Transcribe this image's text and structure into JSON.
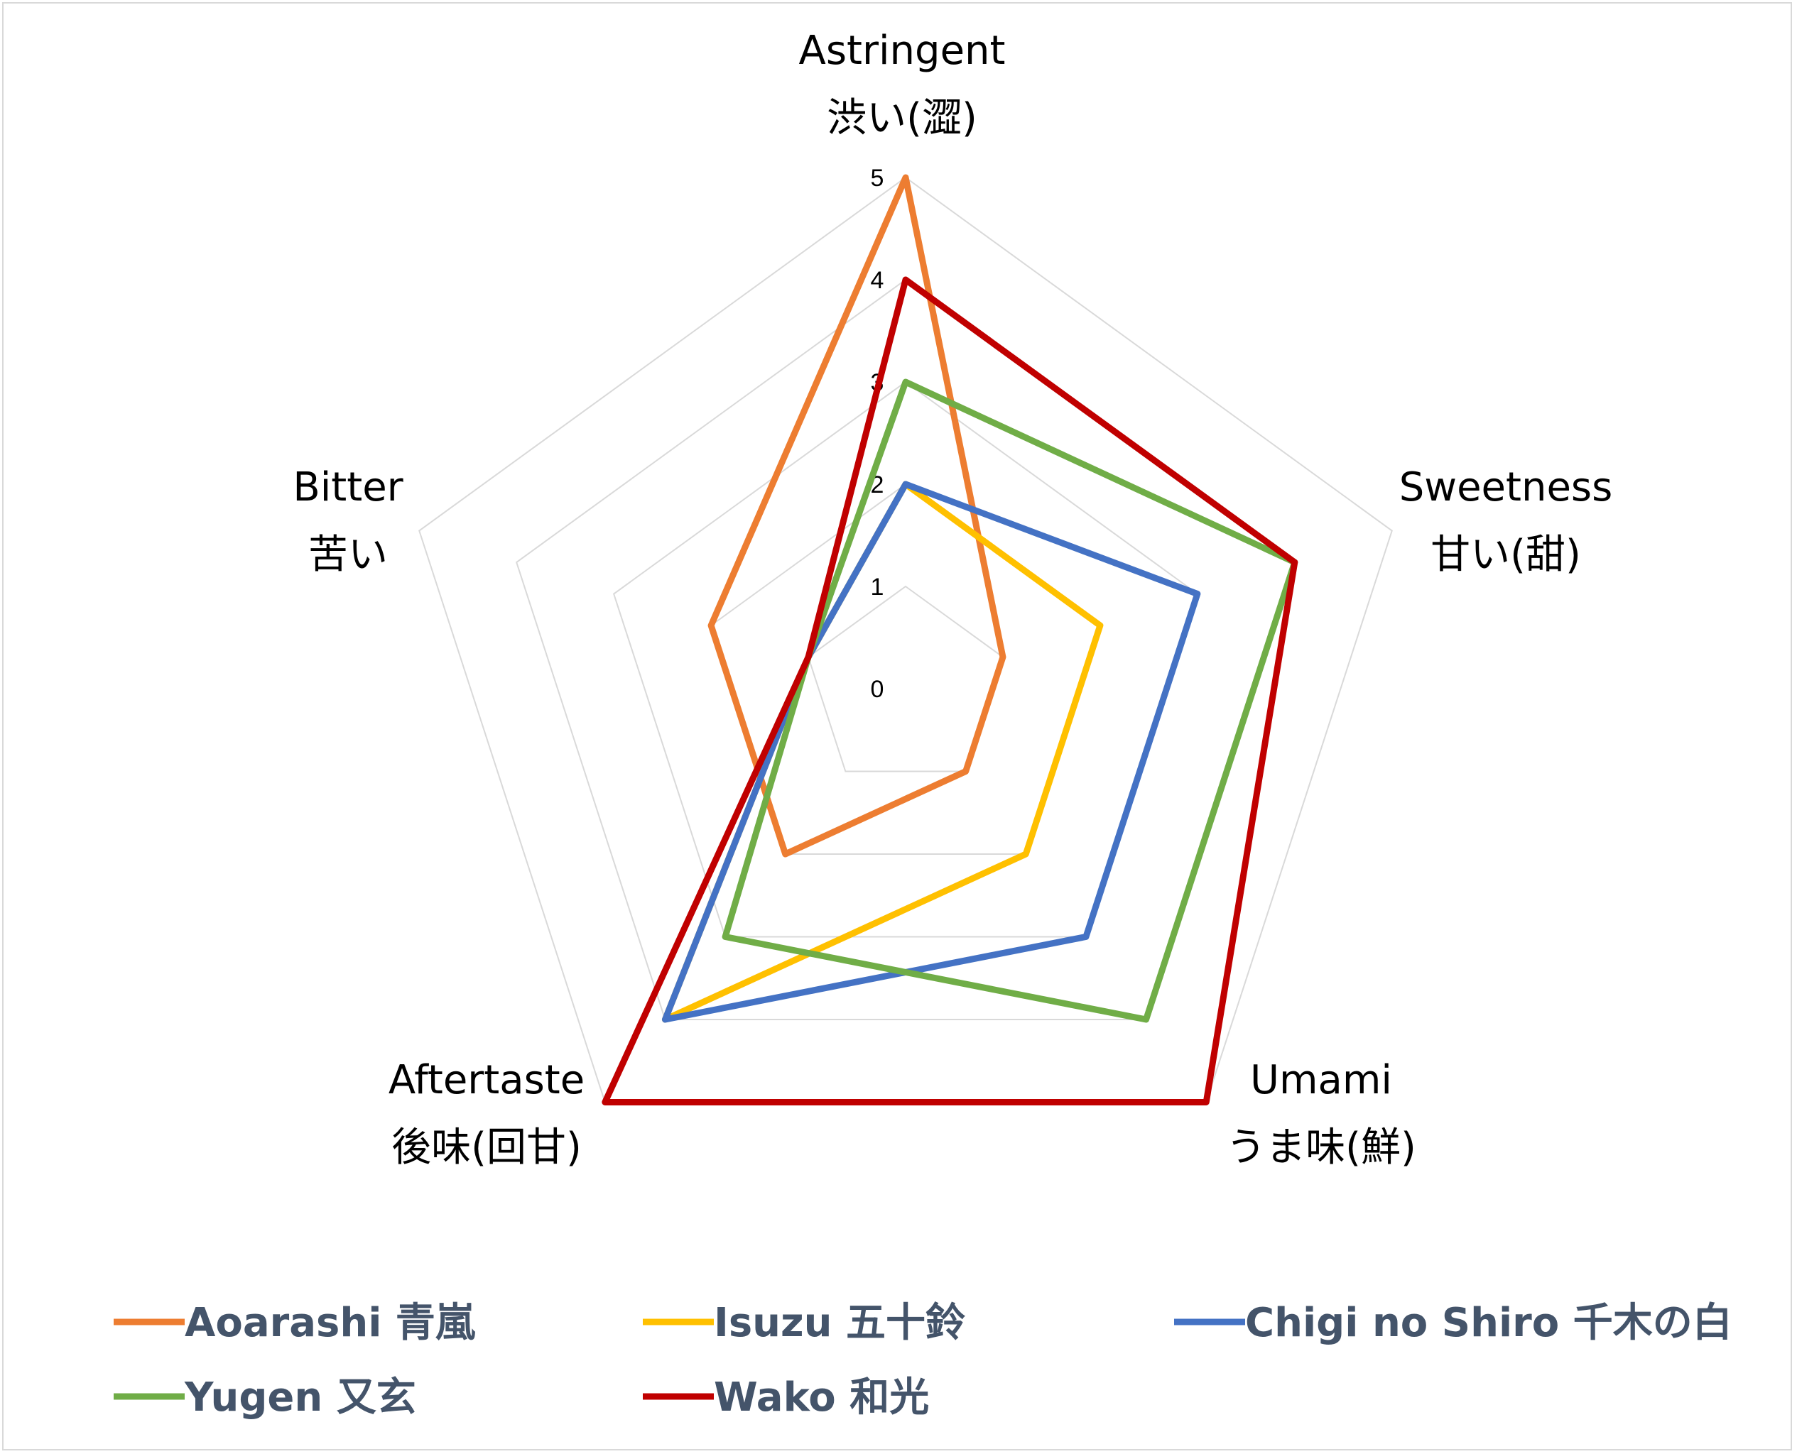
{
  "chart_data": {
    "type": "radar",
    "axes": [
      {
        "label": "Astringent",
        "sublabel": "渋い(澀)"
      },
      {
        "label": "Sweetness",
        "sublabel": "甘い(甜)"
      },
      {
        "label": "Umami",
        "sublabel": "うま味(鮮)"
      },
      {
        "label": "Aftertaste",
        "sublabel": "後味(回甘)"
      },
      {
        "label": "Bitter",
        "sublabel": "苦い"
      }
    ],
    "ticks": [
      "0",
      "1",
      "2",
      "3",
      "4",
      "5"
    ],
    "rlim": [
      0,
      5
    ],
    "grid": true,
    "legend_position": "bottom",
    "series": [
      {
        "name": "Aoarashi 青嵐",
        "color": "#ed7d31",
        "values": [
          5,
          1,
          1,
          2,
          2
        ]
      },
      {
        "name": "Isuzu 五十鈴",
        "color": "#ffc000",
        "values": [
          2,
          2,
          2,
          4,
          1
        ]
      },
      {
        "name": "Chigi no Shiro 千木の白",
        "color": "#4472c4",
        "values": [
          2,
          3,
          3,
          4,
          1
        ]
      },
      {
        "name": "Yugen 又玄",
        "color": "#70ad47",
        "values": [
          3,
          4,
          4,
          3,
          1
        ]
      },
      {
        "name": "Wako 和光",
        "color": "#c00000",
        "values": [
          4,
          4,
          5,
          5,
          1
        ]
      }
    ]
  }
}
